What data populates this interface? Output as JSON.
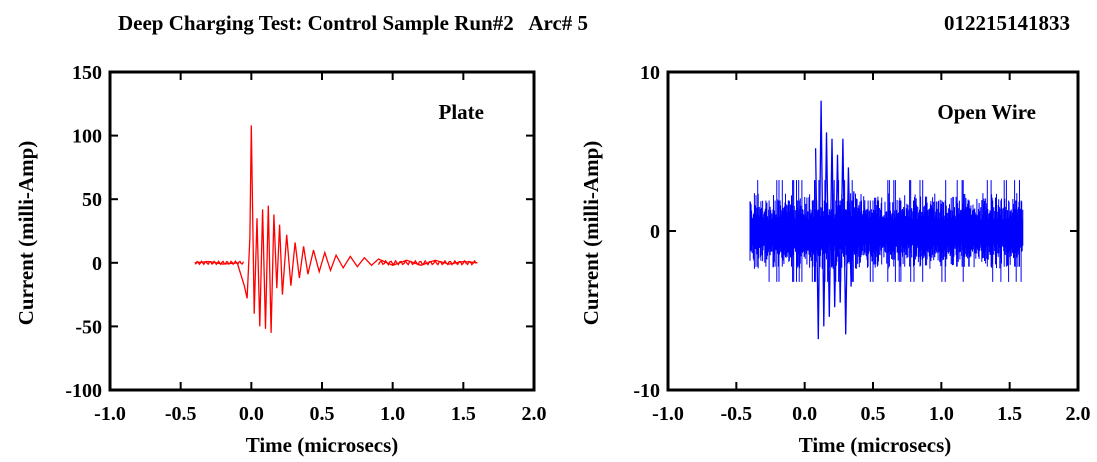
{
  "header": {
    "title": "Deep Charging Test: Control Sample Run#2   Arc# 5",
    "id_code": "012215141833"
  },
  "chart_data": [
    {
      "type": "line",
      "annotation": "Plate",
      "xlabel": "Time (microsecs)",
      "ylabel": "Current (milli-Amp)",
      "xlim": [
        -1.0,
        2.0
      ],
      "ylim": [
        -100,
        150
      ],
      "xticks": [
        "-1.0",
        "-0.5",
        "0.0",
        "0.5",
        "1.0",
        "1.5",
        "2.0"
      ],
      "yticks": [
        "150",
        "100",
        "50",
        "0",
        "-50",
        "-100"
      ],
      "grid": false,
      "color": "#ff0000",
      "x": [
        -0.4,
        -0.3,
        -0.2,
        -0.1,
        -0.05,
        -0.03,
        -0.01,
        0.0,
        0.02,
        0.04,
        0.06,
        0.08,
        0.1,
        0.12,
        0.14,
        0.16,
        0.18,
        0.2,
        0.22,
        0.25,
        0.28,
        0.31,
        0.34,
        0.37,
        0.4,
        0.44,
        0.48,
        0.52,
        0.56,
        0.6,
        0.65,
        0.7,
        0.75,
        0.8,
        0.85,
        0.9,
        1.0,
        1.1,
        1.2,
        1.3,
        1.4,
        1.5,
        1.6
      ],
      "y": [
        0,
        1,
        -1,
        0,
        -18,
        -28,
        20,
        108,
        -40,
        35,
        -50,
        42,
        -52,
        45,
        -55,
        38,
        -20,
        30,
        -25,
        22,
        -18,
        16,
        -12,
        13,
        -9,
        10,
        -7,
        8,
        -6,
        6,
        -4,
        5,
        -3,
        4,
        -2,
        3,
        -2,
        2,
        -2,
        2,
        -1,
        1,
        0
      ]
    },
    {
      "type": "line",
      "annotation": "Open Wire",
      "xlabel": "Time (microsecs)",
      "ylabel": "Current (milli-Amp)",
      "xlim": [
        -1.0,
        2.0
      ],
      "ylim": [
        -10,
        10
      ],
      "xticks": [
        "-1.0",
        "-0.5",
        "0.0",
        "0.5",
        "1.0",
        "1.5",
        "2.0"
      ],
      "yticks": [
        "10",
        "0",
        "-10"
      ],
      "grid": false,
      "color": "#0000ff",
      "noise": {
        "x_start": -0.4,
        "x_end": 1.6,
        "band": 2.4,
        "spikes": 3.2
      },
      "burst": {
        "x": [
          0.08,
          0.1,
          0.12,
          0.14,
          0.16,
          0.18,
          0.2,
          0.22,
          0.24,
          0.26,
          0.28,
          0.3,
          0.32,
          0.34,
          0.36
        ],
        "y": [
          5.2,
          -6.8,
          8.2,
          -6.0,
          6.2,
          -5.4,
          5.8,
          -4.8,
          4.8,
          -4.5,
          5.8,
          -6.5,
          4.0,
          -3.5,
          2.5
        ]
      }
    }
  ]
}
